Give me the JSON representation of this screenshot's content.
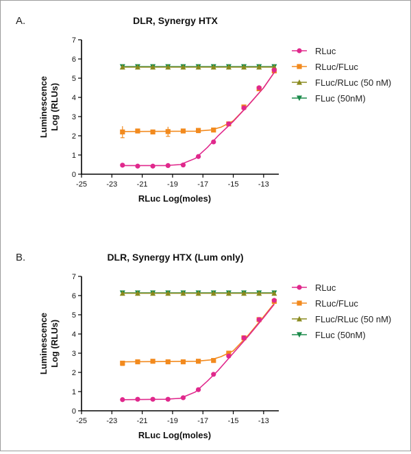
{
  "panels": [
    {
      "letter": "A.",
      "chart_data": {
        "type": "line",
        "title": "DLR, Synergy HTX",
        "xlabel": "RLuc Log(moles)",
        "ylabel_line1": "Luminescence",
        "ylabel_line2": "Log (RLUs)",
        "xlim": [
          -25,
          -12
        ],
        "ylim": [
          0,
          7
        ],
        "xticks": [
          -25,
          -23,
          -21,
          -19,
          -17,
          -15,
          -13
        ],
        "yticks": [
          0,
          1,
          2,
          3,
          4,
          5,
          6,
          7
        ],
        "legend_position": "right",
        "x": [
          -22.3,
          -21.3,
          -20.3,
          -19.3,
          -18.3,
          -17.3,
          -16.3,
          -15.3,
          -14.3,
          -13.3,
          -12.3
        ],
        "series": [
          {
            "name": "RLuc",
            "color": "#e0288c",
            "marker": "circle",
            "values": [
              0.47,
              0.42,
              0.42,
              0.45,
              0.48,
              0.92,
              1.68,
              2.62,
              3.45,
              4.5,
              5.42
            ],
            "fit": [
              [
                -22.3,
                0.45
              ],
              [
                -19.5,
                0.45
              ],
              [
                -18.5,
                0.5
              ],
              [
                -17.5,
                0.82
              ],
              [
                -16.7,
                1.4
              ],
              [
                -16,
                2.0
              ],
              [
                -15,
                2.75
              ],
              [
                -14,
                3.6
              ],
              [
                -13,
                4.5
              ],
              [
                -12.3,
                5.3
              ]
            ]
          },
          {
            "name": "RLuc/FLuc",
            "color": "#f28a1e",
            "marker": "square",
            "values": [
              2.2,
              2.25,
              2.2,
              2.22,
              2.25,
              2.28,
              2.3,
              2.62,
              3.5,
              4.45,
              5.38
            ],
            "errors": [
              0.3,
              0.1,
              0.1,
              0.25,
              0.1,
              0.12,
              0.08,
              0.05,
              0.05,
              0.05,
              0.05
            ],
            "fit": [
              [
                -22.3,
                2.22
              ],
              [
                -17.5,
                2.24
              ],
              [
                -16.5,
                2.3
              ],
              [
                -15.8,
                2.45
              ],
              [
                -15,
                2.78
              ],
              [
                -14,
                3.6
              ],
              [
                -13,
                4.5
              ],
              [
                -12.3,
                5.3
              ]
            ]
          },
          {
            "name": "FLuc/RLuc (50 nM)",
            "color": "#8a8a1e",
            "marker": "triangle-up",
            "values": [
              5.58,
              5.58,
              5.58,
              5.58,
              5.58,
              5.58,
              5.58,
              5.58,
              5.58,
              5.58,
              5.58
            ]
          },
          {
            "name": "FLuc (50nM)",
            "color": "#1a8a4a",
            "marker": "triangle-down",
            "values": [
              5.6,
              5.6,
              5.6,
              5.6,
              5.6,
              5.6,
              5.6,
              5.6,
              5.6,
              5.6,
              5.6
            ]
          }
        ]
      }
    },
    {
      "letter": "B.",
      "chart_data": {
        "type": "line",
        "title": "DLR, Synergy HTX (Lum only)",
        "xlabel": "RLuc Log(moles)",
        "ylabel_line1": "Luminescence",
        "ylabel_line2": "Log (RLUs)",
        "xlim": [
          -25,
          -12
        ],
        "ylim": [
          0,
          7
        ],
        "xticks": [
          -25,
          -23,
          -21,
          -19,
          -17,
          -15,
          -13
        ],
        "yticks": [
          0,
          1,
          2,
          3,
          4,
          5,
          6,
          7
        ],
        "legend_position": "right",
        "x": [
          -22.3,
          -21.3,
          -20.3,
          -19.3,
          -18.3,
          -17.3,
          -16.3,
          -15.3,
          -14.3,
          -13.3,
          -12.3
        ],
        "series": [
          {
            "name": "RLuc",
            "color": "#e0288c",
            "marker": "circle",
            "values": [
              0.58,
              0.6,
              0.6,
              0.6,
              0.68,
              1.1,
              1.9,
              2.85,
              3.8,
              4.75,
              5.75
            ],
            "fit": [
              [
                -22.3,
                0.58
              ],
              [
                -19.5,
                0.6
              ],
              [
                -18.5,
                0.65
              ],
              [
                -17.5,
                0.98
              ],
              [
                -16.7,
                1.55
              ],
              [
                -16,
                2.1
              ],
              [
                -15,
                3.0
              ],
              [
                -14,
                3.9
              ],
              [
                -13,
                4.85
              ],
              [
                -12.3,
                5.55
              ]
            ]
          },
          {
            "name": "RLuc/FLuc",
            "color": "#f28a1e",
            "marker": "square",
            "values": [
              2.48,
              2.55,
              2.58,
              2.55,
              2.55,
              2.58,
              2.62,
              3.0,
              3.8,
              4.75,
              5.7
            ],
            "errors": [
              0.12,
              0.08,
              0.08,
              0.08,
              0.08,
              0.08,
              0.08,
              0.05,
              0.05,
              0.05,
              0.05
            ],
            "fit": [
              [
                -22.3,
                2.55
              ],
              [
                -17.5,
                2.58
              ],
              [
                -16.5,
                2.65
              ],
              [
                -15.8,
                2.82
              ],
              [
                -15,
                3.12
              ],
              [
                -14,
                3.95
              ],
              [
                -13,
                4.9
              ],
              [
                -12.3,
                5.6
              ]
            ]
          },
          {
            "name": "FLuc/RLuc (50 nM)",
            "color": "#8a8a1e",
            "marker": "triangle-up",
            "values": [
              6.12,
              6.12,
              6.12,
              6.12,
              6.12,
              6.12,
              6.12,
              6.12,
              6.12,
              6.12,
              6.12
            ]
          },
          {
            "name": "FLuc (50nM)",
            "color": "#1a8a4a",
            "marker": "triangle-down",
            "values": [
              6.14,
              6.14,
              6.14,
              6.14,
              6.14,
              6.14,
              6.14,
              6.14,
              6.14,
              6.14,
              6.14
            ]
          }
        ]
      }
    }
  ]
}
